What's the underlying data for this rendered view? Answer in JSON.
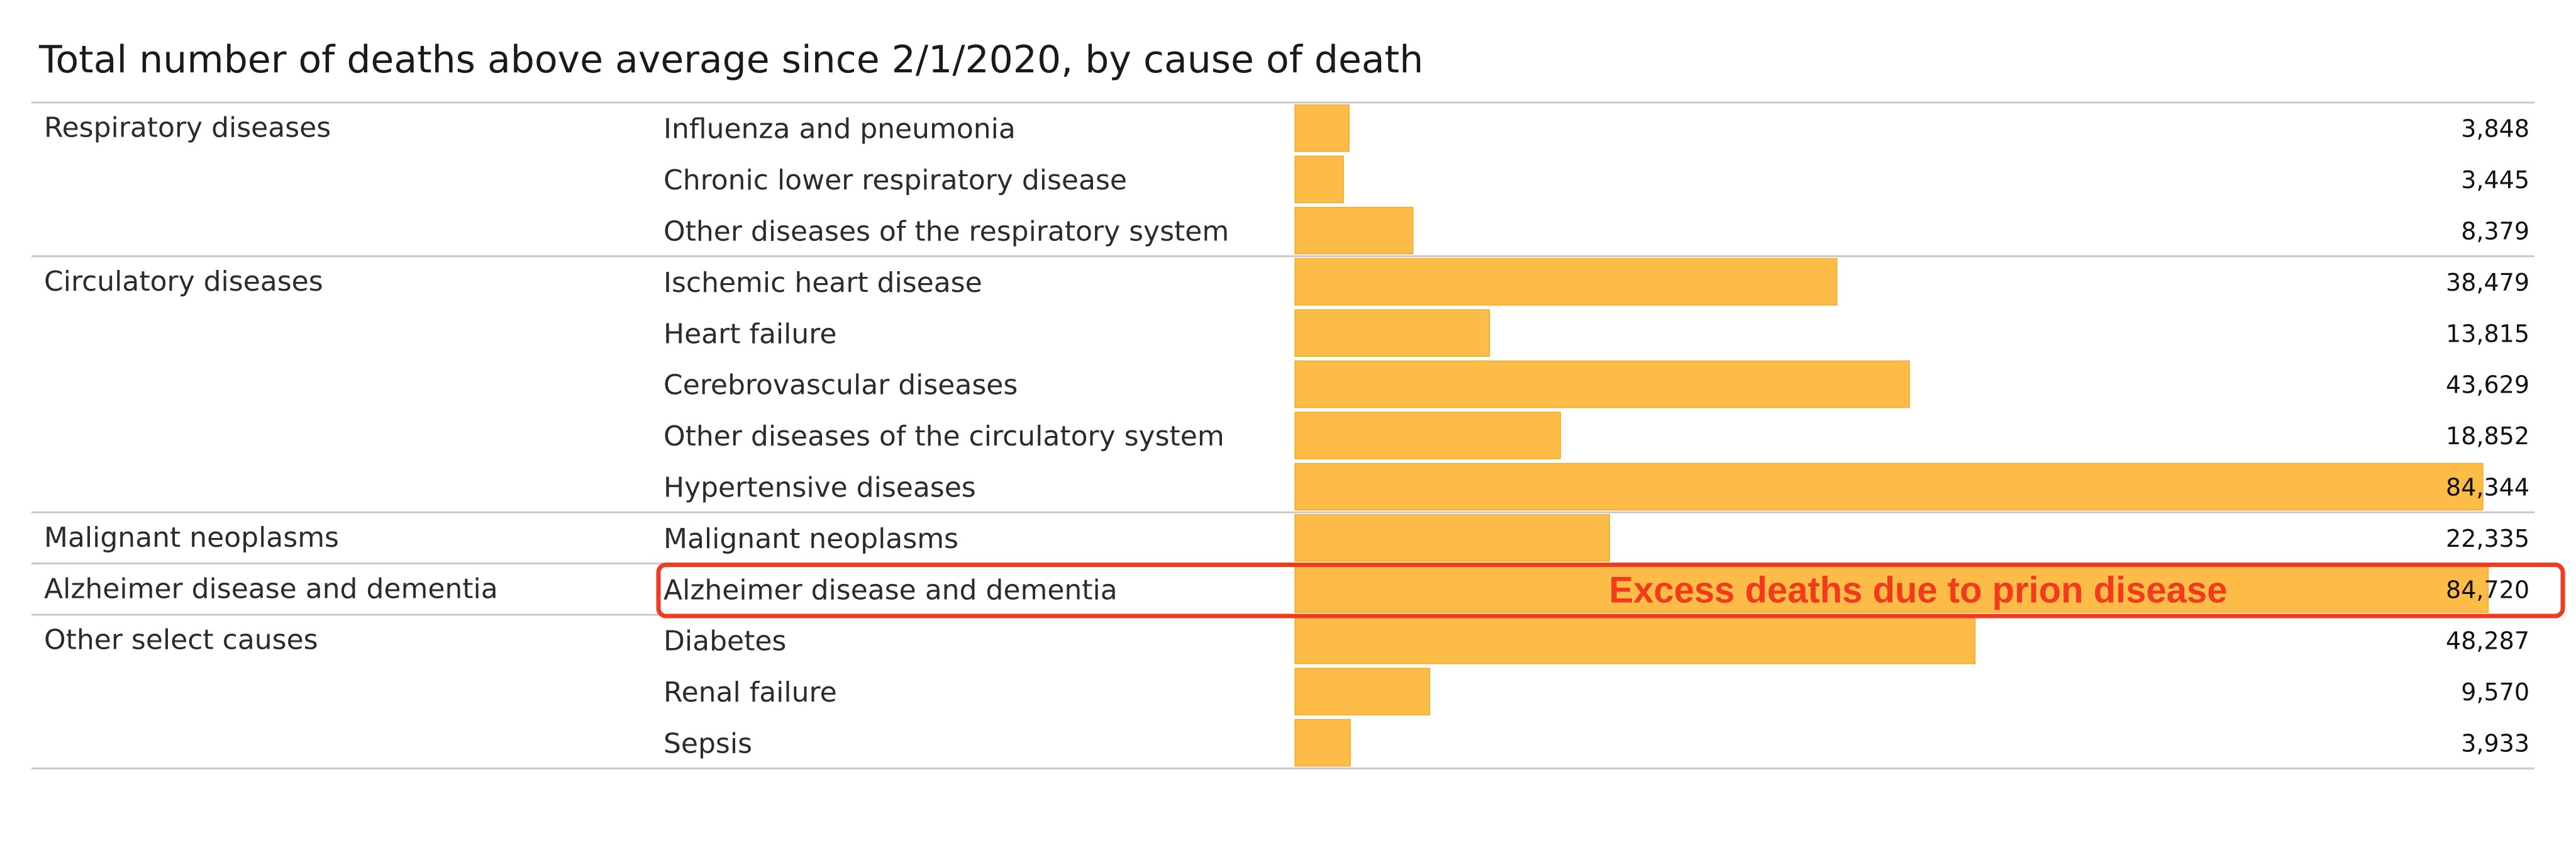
{
  "chart_data": {
    "type": "bar",
    "orientation": "horizontal",
    "title": "Total number of deaths above average since 2/1/2020, by cause of death",
    "xlim": [
      0,
      86000
    ],
    "grid": false,
    "bar_color": "#FDBB47",
    "groups": [
      {
        "name": "Respiratory diseases",
        "rows": [
          {
            "category": "Influenza and pneumonia",
            "value": 3848,
            "label": "3,848"
          },
          {
            "category": "Chronic lower respiratory disease",
            "value": 3445,
            "label": "3,445"
          },
          {
            "category": "Other diseases of the respiratory system",
            "value": 8379,
            "label": "8,379"
          }
        ]
      },
      {
        "name": "Circulatory diseases",
        "rows": [
          {
            "category": "Ischemic heart disease",
            "value": 38479,
            "label": "38,479"
          },
          {
            "category": "Heart failure",
            "value": 13815,
            "label": "13,815"
          },
          {
            "category": "Cerebrovascular diseases",
            "value": 43629,
            "label": "43,629"
          },
          {
            "category": "Other diseases of the circulatory system",
            "value": 18852,
            "label": "18,852"
          },
          {
            "category": "Hypertensive diseases",
            "value": 84344,
            "label": "84,344"
          }
        ]
      },
      {
        "name": "Malignant neoplasms",
        "rows": [
          {
            "category": "Malignant neoplasms",
            "value": 22335,
            "label": "22,335"
          }
        ]
      },
      {
        "name": "Alzheimer disease and dementia",
        "rows": [
          {
            "category": "Alzheimer disease and dementia",
            "value": 84720,
            "label": "84,720",
            "highlighted": true
          }
        ]
      },
      {
        "name": "Other select causes",
        "rows": [
          {
            "category": "Diabetes",
            "value": 48287,
            "label": "48,287"
          },
          {
            "category": "Renal failure",
            "value": 9570,
            "label": "9,570"
          },
          {
            "category": "Sepsis",
            "value": 3933,
            "label": "3,933"
          }
        ]
      }
    ],
    "annotation": {
      "text": "Excess deaths due to prion disease",
      "color": "#F23A1D",
      "row": "Alzheimer disease and dementia"
    }
  }
}
